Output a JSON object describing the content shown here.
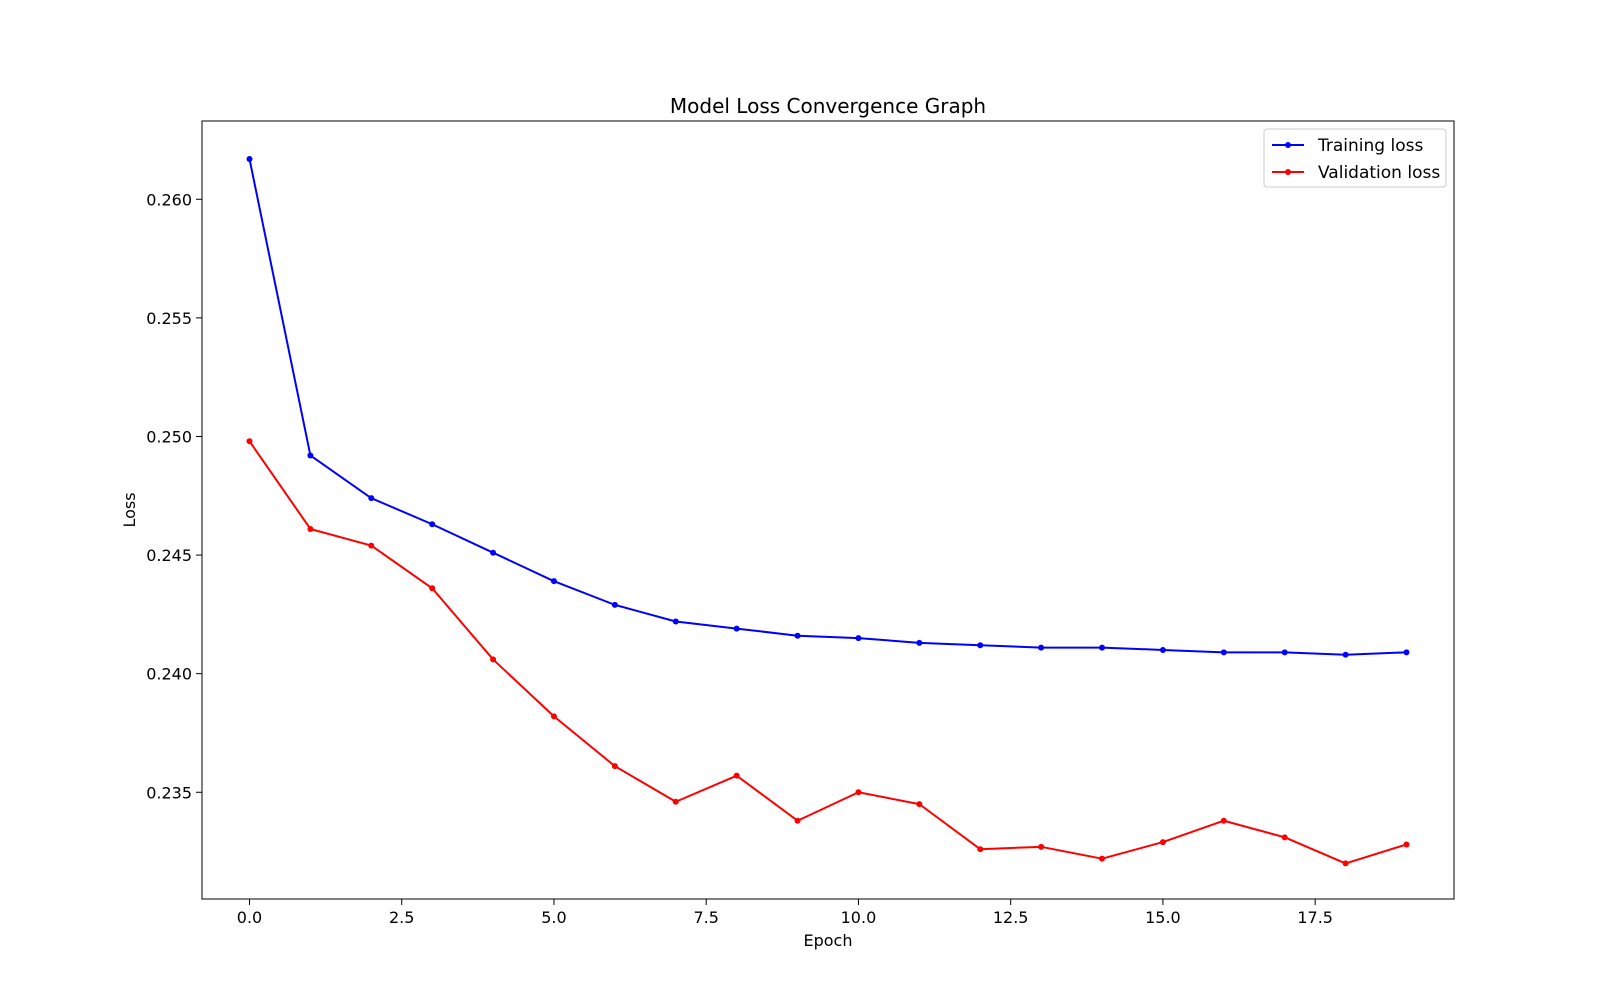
{
  "chart_data": {
    "type": "line",
    "title": "Model Loss Convergence Graph",
    "xlabel": "Epoch",
    "ylabel": "Loss",
    "xlim": [
      -0.78,
      19.78
    ],
    "ylim": [
      0.2305,
      0.2633
    ],
    "xticks": [
      0.0,
      2.5,
      5.0,
      7.5,
      10.0,
      12.5,
      15.0,
      17.5
    ],
    "xtick_labels": [
      "0.0",
      "2.5",
      "5.0",
      "7.5",
      "10.0",
      "12.5",
      "15.0",
      "17.5"
    ],
    "yticks": [
      0.235,
      0.24,
      0.245,
      0.25,
      0.255,
      0.26
    ],
    "ytick_labels": [
      "0.235",
      "0.240",
      "0.245",
      "0.250",
      "0.255",
      "0.260"
    ],
    "grid": false,
    "legend_position": "top-right",
    "x": [
      0,
      1,
      2,
      3,
      4,
      5,
      6,
      7,
      8,
      9,
      10,
      11,
      12,
      13,
      14,
      15,
      16,
      17,
      18,
      19
    ],
    "series": [
      {
        "name": "Training loss",
        "color": "#0000ff",
        "marker": "dot",
        "values": [
          0.2617,
          0.2492,
          0.2474,
          0.2463,
          0.2451,
          0.2439,
          0.2429,
          0.2422,
          0.2419,
          0.2416,
          0.2415,
          0.2413,
          0.2412,
          0.2411,
          0.2411,
          0.241,
          0.2409,
          0.2409,
          0.2408,
          0.2409
        ]
      },
      {
        "name": "Validation loss",
        "color": "#ff0000",
        "marker": "dot",
        "values": [
          0.2498,
          0.2461,
          0.2454,
          0.2436,
          0.2406,
          0.2382,
          0.2361,
          0.2346,
          0.2357,
          0.2338,
          0.235,
          0.2345,
          0.2326,
          0.2327,
          0.2322,
          0.2329,
          0.2338,
          0.2331,
          0.232,
          0.2328
        ]
      }
    ]
  }
}
